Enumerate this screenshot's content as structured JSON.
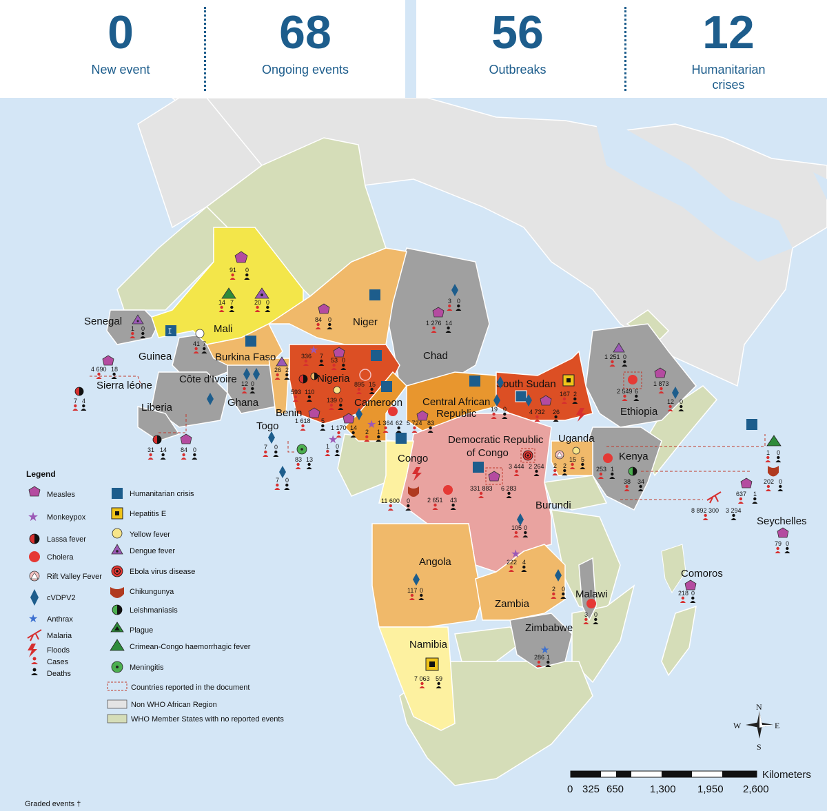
{
  "stats": [
    {
      "value": "0",
      "label": "New event"
    },
    {
      "value": "68",
      "label": "Ongoing events"
    },
    {
      "value": "56",
      "label": "Outbreaks"
    },
    {
      "value": "12",
      "label": "Humanitarian crises"
    }
  ],
  "colors": {
    "dark_blue": "#1d5d8c",
    "sea": "#d4e6f6",
    "non_who": "#e2e2e2",
    "who_no_events": "#d5ddb8",
    "grey_events": "#a0a0a0",
    "yellow": "#f3e64a",
    "light_orange": "#f0b96a",
    "orange": "#e8962e",
    "red_orange": "#dc4f24",
    "pink": "#e9a3a0",
    "light_yellow": "#fdf1a0"
  },
  "countries": {
    "senegal": "Senegal",
    "mali": "Mali",
    "niger": "Niger",
    "chad": "Chad",
    "guinea": "Guinea",
    "burkina_faso": "Burkina Faso",
    "nigeria": "Nigeria",
    "sierra_leone": "Sierra léone",
    "cote_divoire": "Côte d'Ivoire",
    "ghana": "Ghana",
    "liberia": "Liberia",
    "benin": "Benin",
    "togo": "Togo",
    "cameroon": "Cameroon",
    "car_1": "Central African",
    "car_2": "Republic",
    "south_sudan": "South Sudan",
    "ethiopia": "Ethiopia",
    "drc_1": "Democratic Republic",
    "drc_2": "of Congo",
    "uganda": "Uganda",
    "kenya": "Kenya",
    "congo": "Congo",
    "burundi": "Burundi",
    "seychelles": "Seychelles",
    "angola": "Angola",
    "zambia": "Zambia",
    "malawi": "Malawi",
    "comoros": "Comoros",
    "namibia": "Namibia",
    "zimbabwe": "Zimbabwe"
  },
  "numbers": {
    "mali_measles_c": "91",
    "mali_measles_d": "0",
    "mali_cchf_c": "14",
    "mali_cchf_d": "7",
    "mali_dengue_c": "20",
    "mali_dengue_d": "0",
    "mali_yf_c": "41",
    "mali_yf_d": "7",
    "niger_measles_c": "84",
    "niger_measles_d": "0",
    "chad_measles_c": "1 276",
    "chad_measles_d": "14",
    "chad_cvdpv_c": "3",
    "chad_cvdpv_d": "0",
    "senegal_dengue_c": "1",
    "senegal_dengue_d": "0",
    "guinea_measles_c": "4 690",
    "guinea_measles_d": "18",
    "sl_lassa_c": "7",
    "sl_lassa_d": "4",
    "lib_lassa_c": "31",
    "lib_lassa_d": "14",
    "lib_measles_c": "84",
    "lib_measles_d": "0",
    "bf_dengue_c": "26",
    "bf_dengue_d": "2",
    "ghana_cvdpv_c": "12",
    "ghana_cvdpv_d": "0",
    "nga_mpox_c": "336",
    "nga_mpox_d": "7",
    "nga_measles_c": "53",
    "nga_measles_d": "0",
    "nga_lassa_c": "593",
    "nga_lassa_d": "110",
    "nga_yf_c": "139",
    "nga_yf_d": "0",
    "nga_rvf_c": "895",
    "nga_rvf_d": "15",
    "nga_cvdpv_c": "1 618",
    "nga_cvdpv_d": "5",
    "togo_cvdpv_c": "7",
    "togo_cvdpv_d": "0",
    "benin_men_c": "83",
    "benin_men_d": "13",
    "benin_cvdpv_c": "7",
    "benin_cvdpv_d": "0",
    "cmr_mpox_c": "1",
    "cmr_mpox_d": "0",
    "cmr_a_c": "1 170",
    "cmr_a_d": "14",
    "cmr_b_c": "2",
    "cmr_b_d": "1",
    "cmr_chol_c": "1 364",
    "cmr_chol_d": "62",
    "car_measles_c": "5 724",
    "car_measles_d": "83",
    "car_cvdpv_c": "19",
    "car_cvdpv_d": "0",
    "ss_hepe_c": "167",
    "ss_hepe_d": "2",
    "ss_measles_c": "4 732",
    "ss_measles_d": "26",
    "eth_dengue_c": "1 251",
    "eth_dengue_d": "0",
    "eth_measles_c": "1 873",
    "eth_measles_d": "",
    "eth_chol_c": "2 549",
    "eth_chol_d": "6",
    "eth_cvdpv_c": "12",
    "eth_cvdpv_d": "0",
    "drc_ebola_c": "3 444",
    "drc_ebola_d": "2 264",
    "drc_measles_c": "331 883",
    "drc_measles_d": "6 283",
    "drc_chol_c": "2 651",
    "drc_chol_d": "43",
    "drc_cvdpv_c": "105",
    "drc_cvdpv_d": "0",
    "drc_mpox_c": "222",
    "drc_mpox_d": "4",
    "uga_rvf_c": "2",
    "uga_rvf_d": "2",
    "uga_yf_c": "15",
    "uga_yf_d": "5",
    "ken_chol_c": "253",
    "ken_chol_d": "1",
    "ken_leish_c": "38",
    "ken_leish_d": "34",
    "ken_plague_c": "1",
    "ken_plague_d": "0",
    "ken_chik_c": "202",
    "ken_chik_d": "0",
    "ken_measles_c": "637",
    "ken_measles_d": "1",
    "ken_mal_c": "8 892 300",
    "ken_mal_d": "3 294",
    "congo_chik_c": "11 600",
    "congo_chik_d": "0",
    "sey_measles_c": "79",
    "sey_measles_d": "0",
    "ang_cvdpv_c": "117",
    "ang_cvdpv_d": "0",
    "zam_cvdpv_c": "2",
    "zam_cvdpv_d": "0",
    "mal_chol_c": "3",
    "mal_chol_d": "0",
    "com_measles_c": "218",
    "com_measles_d": "0",
    "nam_hepe_c": "7 063",
    "nam_hepe_d": "59",
    "zim_anthrax_c": "286",
    "zim_anthrax_d": "1"
  },
  "legend": {
    "title": "Legend",
    "items": {
      "measles": "Measles",
      "monkeypox": "Monkeypox",
      "lassa": "Lassa fever",
      "cholera": "Cholera",
      "rvf": "Rift Valley Fever",
      "cvdpv2": "cVDPV2",
      "anthrax": "Anthrax",
      "malaria": "Malaria",
      "floods": "Floods",
      "cases": "Cases",
      "deaths": "Deaths",
      "humanitarian": "Humanitarian crisis",
      "hepe": "Hepatitis E",
      "yf": "Yellow fever",
      "dengue": "Dengue fever",
      "ebola": "Ebola virus disease",
      "chik": "Chikungunya",
      "leish": "Leishmaniasis",
      "plague": "Plague",
      "cchf": "Crimean-Congo haemorrhagic fever",
      "men": "Meningitis",
      "reported": "Countries reported in the document",
      "non_who": "Non WHO African Region",
      "who_none": "WHO Member States with no reported events"
    }
  },
  "compass": {
    "n": "N",
    "s": "S",
    "e": "E",
    "w": "W"
  },
  "scale": {
    "title": "Kilometers",
    "ticks": [
      "0",
      "325",
      "650",
      "1,300",
      "1,950",
      "2,600"
    ]
  },
  "footer": "Graded events †"
}
